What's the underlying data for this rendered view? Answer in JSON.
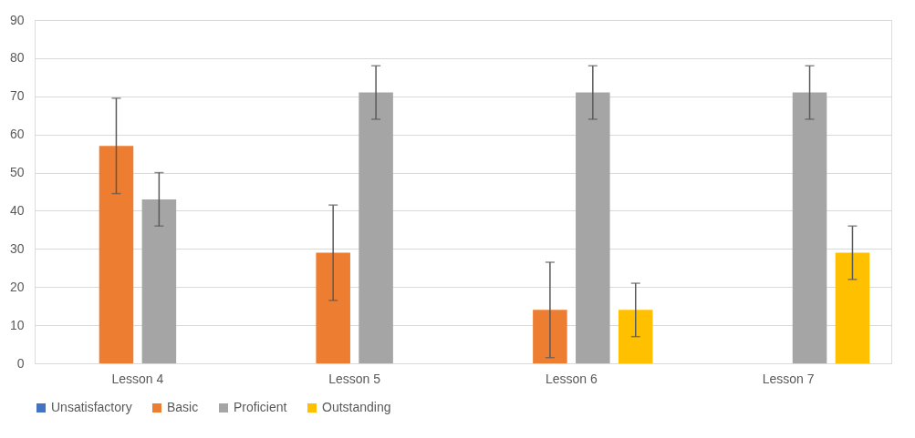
{
  "chart_data": {
    "type": "bar",
    "categories": [
      "Lesson 4",
      "Lesson 5",
      "Lesson 6",
      "Lesson 7"
    ],
    "series": [
      {
        "name": "Unsatisfactory",
        "color": "#4472c4",
        "values": [
          0,
          0,
          0,
          0
        ]
      },
      {
        "name": "Basic",
        "color": "#ed7d31",
        "values": [
          57,
          29,
          14,
          0
        ],
        "errors": [
          12.5,
          12.5,
          12.5,
          null
        ]
      },
      {
        "name": "Proficient",
        "color": "#a5a5a5",
        "values": [
          43,
          71,
          71,
          71
        ],
        "errors": [
          7,
          7,
          7,
          7
        ]
      },
      {
        "name": "Outstanding",
        "color": "#ffc000",
        "values": [
          0,
          0,
          14,
          29
        ],
        "errors": [
          null,
          null,
          7,
          7
        ]
      }
    ],
    "ylim": [
      0,
      90
    ],
    "yticks": [
      0,
      10,
      20,
      30,
      40,
      50,
      60,
      70,
      80,
      90
    ],
    "grid": "y",
    "legend": "bottom"
  }
}
